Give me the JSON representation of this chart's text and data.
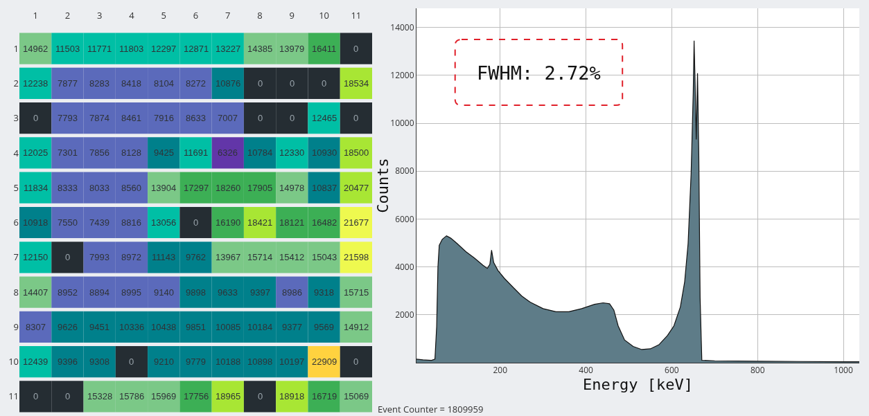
{
  "chart_data": [
    {
      "type": "heatmap",
      "categories": [
        "1",
        "2",
        "3",
        "4",
        "5",
        "6",
        "7",
        "8",
        "9",
        "10",
        "11"
      ],
      "y_categories": [
        "1",
        "2",
        "3",
        "4",
        "5",
        "6",
        "7",
        "8",
        "9",
        "10",
        "11"
      ],
      "data_labels": true,
      "cells": [
        [
          14962,
          11503,
          11771,
          11803,
          12297,
          12871,
          13227,
          14385,
          13979,
          16411,
          0
        ],
        [
          12238,
          7877,
          8283,
          8418,
          8104,
          8272,
          10876,
          0,
          0,
          0,
          18534
        ],
        [
          0,
          7793,
          7874,
          8461,
          7916,
          8633,
          7007,
          0,
          0,
          12465,
          0
        ],
        [
          12025,
          7301,
          7856,
          8128,
          9425,
          11691,
          6326,
          10784,
          12330,
          10930,
          18500
        ],
        [
          11834,
          8333,
          8033,
          8560,
          13904,
          17297,
          18260,
          17905,
          14978,
          10837,
          20477
        ],
        [
          10918,
          7550,
          7439,
          8816,
          13056,
          0,
          16190,
          18421,
          18121,
          16482,
          21677
        ],
        [
          12150,
          0,
          7993,
          8972,
          11143,
          9762,
          13967,
          15714,
          15412,
          15043,
          21598
        ],
        [
          14407,
          8952,
          8894,
          8995,
          9140,
          9898,
          9633,
          9397,
          8986,
          9318,
          15715
        ],
        [
          8307,
          9626,
          9451,
          10336,
          10438,
          9851,
          10085,
          10184,
          9377,
          9569,
          14912
        ],
        [
          12439,
          9396,
          9308,
          0,
          9210,
          9779,
          10188,
          10898,
          10197,
          22909,
          0
        ],
        [
          0,
          0,
          15328,
          15786,
          15969,
          17756,
          18965,
          0,
          18918,
          16719,
          15069
        ]
      ],
      "colors": [
        [
          "#7bc887",
          "#00bfa5",
          "#00bfa5",
          "#00bfa5",
          "#00bfa5",
          "#00bfa5",
          "#00bfa5",
          "#7bc887",
          "#7bc887",
          "#3caf55",
          "#252d33"
        ],
        [
          "#00bfa5",
          "#5b6abb",
          "#5b6abb",
          "#5b6abb",
          "#5b6abb",
          "#5b6abb",
          "#00808b",
          "#252d33",
          "#252d33",
          "#252d33",
          "#a8e634"
        ],
        [
          "#252d33",
          "#5b6abb",
          "#5b6abb",
          "#5b6abb",
          "#5b6abb",
          "#5b6abb",
          "#5b6abb",
          "#252d33",
          "#252d33",
          "#00bfa5",
          "#252d33"
        ],
        [
          "#00bfa5",
          "#5b6abb",
          "#5b6abb",
          "#5b6abb",
          "#00808b",
          "#00bfa5",
          "#6236a8",
          "#00808b",
          "#00bfa5",
          "#00808b",
          "#a8e634"
        ],
        [
          "#00bfa5",
          "#5b6abb",
          "#5b6abb",
          "#5b6abb",
          "#7bc887",
          "#3caf55",
          "#3caf55",
          "#3caf55",
          "#7bc887",
          "#00808b",
          "#a8e634"
        ],
        [
          "#00808b",
          "#5b6abb",
          "#5b6abb",
          "#5b6abb",
          "#00bfa5",
          "#252d33",
          "#3caf55",
          "#a8e634",
          "#3caf55",
          "#3caf55",
          "#eef94f"
        ],
        [
          "#00bfa5",
          "#252d33",
          "#5b6abb",
          "#5b6abb",
          "#00808b",
          "#00808b",
          "#7bc887",
          "#7bc887",
          "#7bc887",
          "#7bc887",
          "#eef94f"
        ],
        [
          "#7bc887",
          "#5b6abb",
          "#5b6abb",
          "#5b6abb",
          "#5b6abb",
          "#00808b",
          "#00808b",
          "#00808b",
          "#5b6abb",
          "#00808b",
          "#7bc887"
        ],
        [
          "#5b6abb",
          "#00808b",
          "#00808b",
          "#00808b",
          "#00808b",
          "#00808b",
          "#00808b",
          "#00808b",
          "#00808b",
          "#00808b",
          "#7bc887"
        ],
        [
          "#00bfa5",
          "#00808b",
          "#00808b",
          "#252d33",
          "#00808b",
          "#00808b",
          "#00808b",
          "#00808b",
          "#00808b",
          "#ffd23f",
          "#252d33"
        ],
        [
          "#252d33",
          "#252d33",
          "#7bc887",
          "#7bc887",
          "#7bc887",
          "#3caf55",
          "#a8e634",
          "#252d33",
          "#a8e634",
          "#3caf55",
          "#7bc887"
        ]
      ]
    },
    {
      "type": "area",
      "xlabel": "Energy [keV]",
      "ylabel": "Counts",
      "grid": true,
      "xlim": [
        5,
        1037
      ],
      "xticks": [
        200,
        400,
        600,
        800,
        1000
      ],
      "ylim": [
        0,
        14800
      ],
      "yticks": [
        2000,
        4000,
        6000,
        8000,
        10000,
        12000,
        14000
      ],
      "annotations": [
        "FWHM: 2.72%",
        "Event Counter = 1809959"
      ],
      "x": [
        5,
        20,
        40,
        48,
        52,
        55,
        58,
        65,
        75,
        85,
        100,
        120,
        140,
        160,
        170,
        176,
        180,
        185,
        195,
        210,
        230,
        250,
        270,
        300,
        330,
        360,
        390,
        420,
        440,
        455,
        465,
        475,
        490,
        510,
        530,
        550,
        570,
        590,
        605,
        620,
        630,
        638,
        645,
        650,
        652,
        654,
        657,
        660,
        663,
        666,
        670,
        700,
        800,
        900,
        1000,
        1037
      ],
      "series": [
        {
          "color": "#5e7c88",
          "values": [
            150,
            120,
            100,
            150,
            1500,
            4000,
            4900,
            5150,
            5300,
            5200,
            4970,
            4640,
            4370,
            4070,
            3940,
            4110,
            4700,
            4180,
            3850,
            3520,
            3150,
            2790,
            2530,
            2260,
            2130,
            2130,
            2260,
            2440,
            2500,
            2460,
            2200,
            1540,
            950,
            680,
            550,
            580,
            750,
            1140,
            1540,
            2330,
            3380,
            4970,
            7870,
            11300,
            13450,
            11960,
            9320,
            12090,
            8660,
            2730,
            100,
            80,
            60,
            50,
            40,
            40
          ]
        }
      ]
    }
  ]
}
